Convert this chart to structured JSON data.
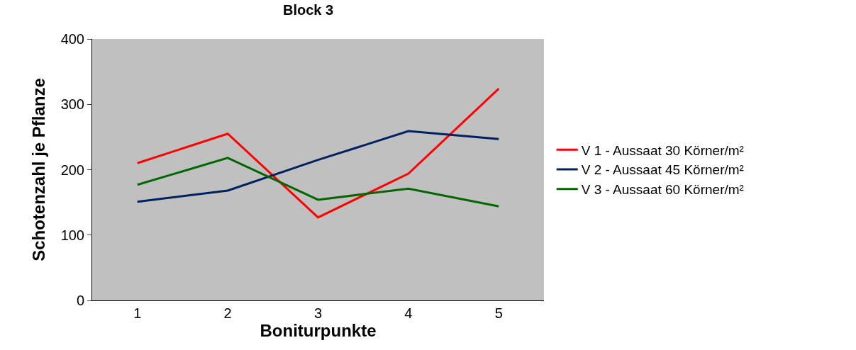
{
  "chart_data": {
    "type": "line",
    "title": "Block 3",
    "xlabel": "Boniturpunkte",
    "ylabel": "Schotenzahl je Pflanze",
    "categories": [
      "1",
      "2",
      "3",
      "4",
      "5"
    ],
    "series": [
      {
        "name": "V 1 - Aussaat 30 Körner/m²",
        "color": "#ff0000",
        "values": [
          210,
          255,
          127,
          194,
          324
        ]
      },
      {
        "name": "V 2 - Aussaat 45 Körner/m²",
        "color": "#002060",
        "values": [
          151,
          168,
          215,
          259,
          247
        ]
      },
      {
        "name": "V 3 - Aussaat 60 Körner/m²",
        "color": "#006600",
        "values": [
          177,
          218,
          154,
          171,
          144
        ]
      }
    ],
    "ylim": [
      0,
      400
    ],
    "yticks": [
      0,
      100,
      200,
      300,
      400
    ],
    "grid": false,
    "legend": "right",
    "marker": "none",
    "line_style": "solid"
  }
}
